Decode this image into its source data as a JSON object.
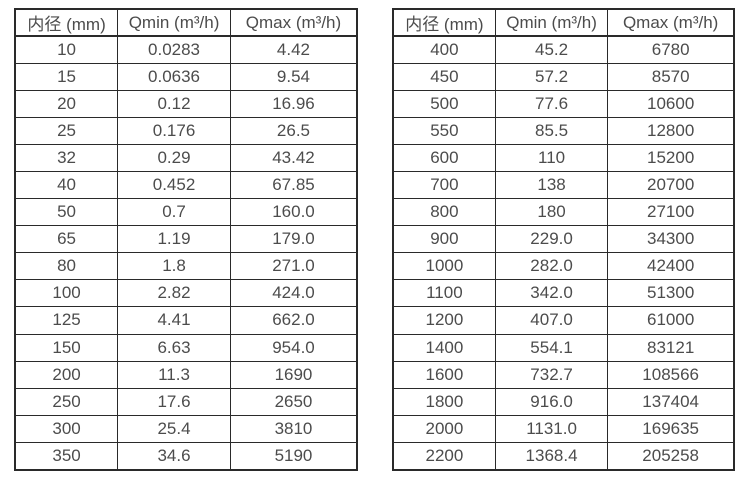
{
  "page": {
    "background_color": "#ffffff",
    "border_color": "#2a2a2a",
    "text_color": "#4c4c4c"
  },
  "chart_data": [
    {
      "type": "table",
      "name": "flow-rate-table-small-diameters",
      "columns": [
        "内径 (mm)",
        "Qmin (m³/h)",
        "Qmax (m³/h)"
      ],
      "rows": [
        [
          "10",
          "0.0283",
          "4.42"
        ],
        [
          "15",
          "0.0636",
          "9.54"
        ],
        [
          "20",
          "0.12",
          "16.96"
        ],
        [
          "25",
          "0.176",
          "26.5"
        ],
        [
          "32",
          "0.29",
          "43.42"
        ],
        [
          "40",
          "0.452",
          "67.85"
        ],
        [
          "50",
          "0.7",
          "160.0"
        ],
        [
          "65",
          "1.19",
          "179.0"
        ],
        [
          "80",
          "1.8",
          "271.0"
        ],
        [
          "100",
          "2.82",
          "424.0"
        ],
        [
          "125",
          "4.41",
          "662.0"
        ],
        [
          "150",
          "6.63",
          "954.0"
        ],
        [
          "200",
          "11.3",
          "1690"
        ],
        [
          "250",
          "17.6",
          "2650"
        ],
        [
          "300",
          "25.4",
          "3810"
        ],
        [
          "350",
          "34.6",
          "5190"
        ]
      ]
    },
    {
      "type": "table",
      "name": "flow-rate-table-large-diameters",
      "columns": [
        "内径 (mm)",
        "Qmin (m³/h)",
        "Qmax (m³/h)"
      ],
      "rows": [
        [
          "400",
          "45.2",
          "6780"
        ],
        [
          "450",
          "57.2",
          "8570"
        ],
        [
          "500",
          "77.6",
          "10600"
        ],
        [
          "550",
          "85.5",
          "12800"
        ],
        [
          "600",
          "110",
          "15200"
        ],
        [
          "700",
          "138",
          "20700"
        ],
        [
          "800",
          "180",
          "27100"
        ],
        [
          "900",
          "229.0",
          "34300"
        ],
        [
          "1000",
          "282.0",
          "42400"
        ],
        [
          "1100",
          "342.0",
          "51300"
        ],
        [
          "1200",
          "407.0",
          "61000"
        ],
        [
          "1400",
          "554.1",
          "83121"
        ],
        [
          "1600",
          "732.7",
          "108566"
        ],
        [
          "1800",
          "916.0",
          "137404"
        ],
        [
          "2000",
          "1131.0",
          "169635"
        ],
        [
          "2200",
          "1368.4",
          "205258"
        ]
      ]
    }
  ]
}
